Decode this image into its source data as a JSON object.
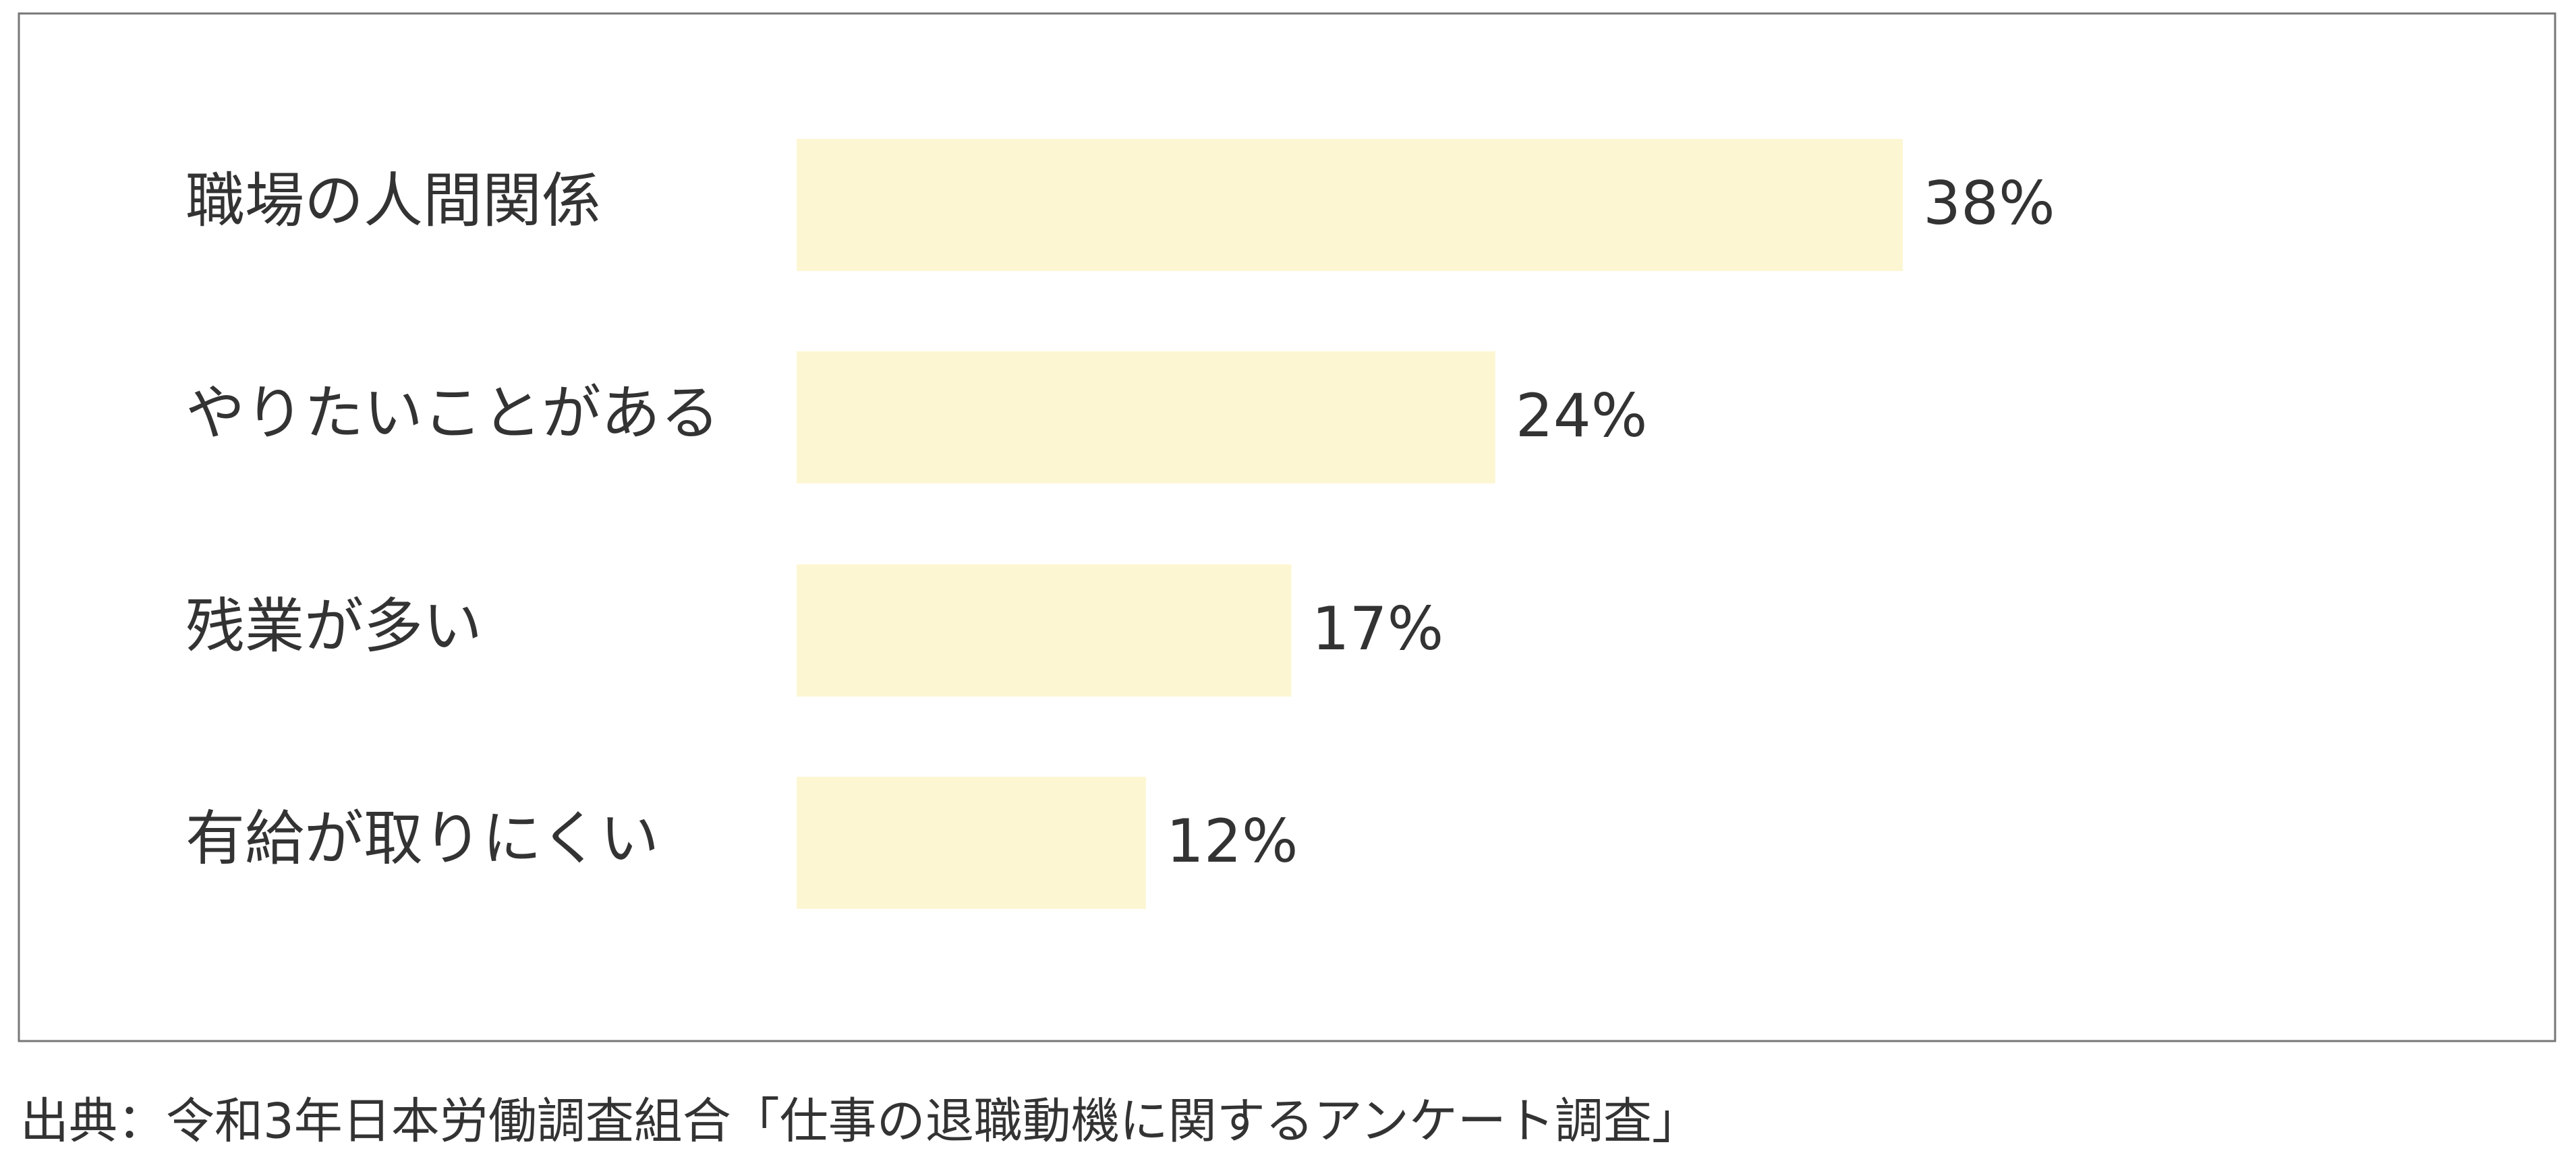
{
  "chart_data": {
    "type": "bar",
    "orientation": "horizontal",
    "categories": [
      "職場の人間関係",
      "やりたいことがある",
      "残業が多い",
      "有給が取りにくい"
    ],
    "values": [
      38,
      24,
      17,
      12
    ],
    "value_labels": [
      "38%",
      "24%",
      "17%",
      "12%"
    ],
    "color": "#fdf6d3",
    "source": "出典：令和3年日本労働調査組合「仕事の退職動機に関するアンケート調査」"
  }
}
